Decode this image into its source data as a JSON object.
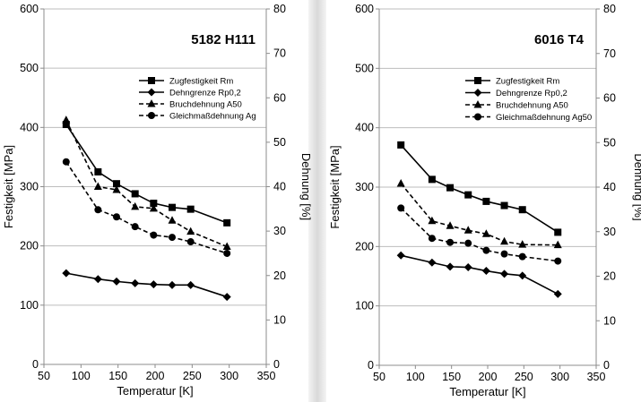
{
  "chart_data": [
    {
      "type": "line",
      "title": "5182 H111",
      "xlabel": "Temperatur [K]",
      "ylabel": "Festigkeit [MPa]",
      "y2label": "Dehnung [%]",
      "xlim": [
        50,
        350
      ],
      "xticks": [
        50,
        100,
        150,
        200,
        250,
        300,
        350
      ],
      "ylim": [
        0,
        600
      ],
      "yticks": [
        0,
        100,
        200,
        300,
        400,
        500,
        600
      ],
      "y2lim": [
        0,
        80
      ],
      "y2ticks": [
        0,
        10,
        20,
        30,
        40,
        50,
        60,
        70,
        80
      ],
      "grid": true,
      "legend_position": "top-right",
      "series": [
        {
          "name": "Zugfestigkeit Rm",
          "axis": "left",
          "marker": "square",
          "dash": "solid",
          "x": [
            80,
            123,
            148,
            173,
            198,
            223,
            248,
            297
          ],
          "y": [
            405,
            325,
            305,
            288,
            272,
            265,
            262,
            239
          ]
        },
        {
          "name": "Dehngrenze Rp0,2",
          "axis": "left",
          "marker": "diamond",
          "dash": "solid",
          "x": [
            80,
            123,
            148,
            173,
            198,
            223,
            248,
            297
          ],
          "y": [
            154,
            144,
            140,
            137,
            135,
            134,
            134,
            114
          ]
        },
        {
          "name": "Bruchdehnung A50",
          "axis": "right",
          "marker": "triangle",
          "dash": "dashed",
          "x": [
            80,
            123,
            148,
            173,
            198,
            223,
            248,
            297
          ],
          "y": [
            55.0,
            40.0,
            39.3,
            35.5,
            35.1,
            32.4,
            29.9,
            26.5
          ]
        },
        {
          "name": "Gleichmaßdehnung Ag",
          "axis": "right",
          "marker": "circle",
          "dash": "dashed",
          "x": [
            80,
            123,
            148,
            173,
            198,
            223,
            248,
            297
          ],
          "y": [
            45.6,
            34.8,
            33.2,
            31.0,
            29.1,
            28.6,
            27.6,
            25.0
          ]
        }
      ]
    },
    {
      "type": "line",
      "title": "6016 T4",
      "xlabel": "Temperatur [K]",
      "ylabel": "Festigkeit [MPa]",
      "y2label": "Dehnung [%]",
      "xlim": [
        50,
        350
      ],
      "xticks": [
        50,
        100,
        150,
        200,
        250,
        300,
        350
      ],
      "ylim": [
        0,
        600
      ],
      "yticks": [
        0,
        100,
        200,
        300,
        400,
        500,
        600
      ],
      "y2lim": [
        0,
        80
      ],
      "y2ticks": [
        0,
        10,
        20,
        30,
        40,
        50,
        60,
        70,
        80
      ],
      "grid": true,
      "legend_position": "top-right",
      "series": [
        {
          "name": "Zugfestigkeit Rm",
          "axis": "left",
          "marker": "square",
          "dash": "solid",
          "x": [
            80,
            123,
            148,
            173,
            198,
            223,
            248,
            297
          ],
          "y": [
            371,
            313,
            299,
            287,
            276,
            269,
            262,
            224
          ]
        },
        {
          "name": "Dehngrenze Rp0,2",
          "axis": "left",
          "marker": "diamond",
          "dash": "solid",
          "x": [
            80,
            123,
            148,
            173,
            198,
            223,
            248,
            297
          ],
          "y": [
            185,
            173,
            166,
            165,
            159,
            154,
            151,
            120
          ]
        },
        {
          "name": "Bruchdehnung A50",
          "axis": "right",
          "marker": "triangle",
          "dash": "dashed",
          "x": [
            80,
            123,
            148,
            173,
            198,
            223,
            248,
            297
          ],
          "y": [
            40.8,
            32.4,
            31.3,
            30.3,
            29.5,
            27.8,
            27.1,
            27.0
          ]
        },
        {
          "name": "Gleichmaßdehnung Ag50",
          "axis": "right",
          "marker": "circle",
          "dash": "dashed",
          "x": [
            80,
            123,
            148,
            173,
            198,
            223,
            248,
            297
          ],
          "y": [
            35.3,
            28.5,
            27.6,
            27.4,
            25.8,
            25.0,
            24.4,
            23.4
          ]
        }
      ]
    }
  ]
}
